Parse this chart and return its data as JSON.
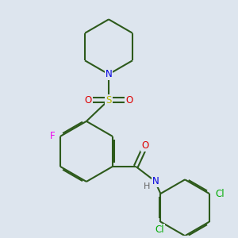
{
  "background_color": "#dde5ee",
  "bond_color": "#2d5a1b",
  "atom_colors": {
    "N": "#0000dd",
    "O": "#dd0000",
    "S": "#bbbb00",
    "F": "#ee00ee",
    "Cl": "#00aa00",
    "C": "#2d5a1b",
    "H": "#666666"
  },
  "line_width": 1.5,
  "font_size": 8.5
}
